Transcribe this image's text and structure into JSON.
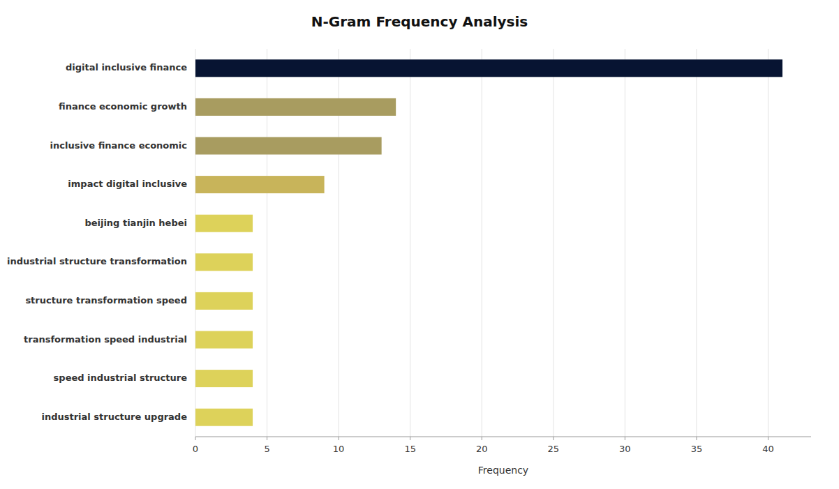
{
  "chart_data": {
    "type": "bar",
    "orientation": "horizontal",
    "title": "N-Gram Frequency Analysis",
    "xlabel": "Frequency",
    "categories": [
      "industrial structure upgrade",
      "speed industrial structure",
      "transformation speed industrial",
      "structure transformation speed",
      "industrial structure transformation",
      "beijing tianjin hebei",
      "impact digital inclusive",
      "inclusive finance economic",
      "finance economic growth",
      "digital inclusive finance"
    ],
    "values": [
      4,
      4,
      4,
      4,
      4,
      4,
      9,
      13,
      14,
      41
    ],
    "colors": [
      "#ddd25a",
      "#ddd25a",
      "#ddd25a",
      "#ddd25a",
      "#ddd25a",
      "#ddd25a",
      "#c8b45a",
      "#a89c60",
      "#a89c60",
      "#071432"
    ],
    "xlim": [
      0,
      43
    ],
    "xticks": [
      0,
      5,
      10,
      15,
      20,
      25,
      30,
      35,
      40
    ],
    "grid": true
  }
}
